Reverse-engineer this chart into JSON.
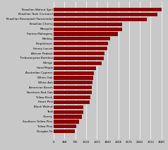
{
  "species": [
    "Brazilian Walnut (Ipe)",
    "Brazilian Teak (Cumaru)",
    "Brazilian Rosewood (Tamarindo)",
    "Brazilian Cherry",
    "Mesquite",
    "Santos Mahogany",
    "Merbau",
    "Purpleheart",
    "Honey Locust",
    "African Padauk",
    "Timboranyana Bamboo",
    "Wenge",
    "Hard Maple",
    "Australian Cypress",
    "White Oak",
    "White Ash",
    "American Beech",
    "Northern Red Oak",
    "Yellow Birch",
    "Heart Pine",
    "Black Walnut",
    "Teak",
    "Cherry",
    "Southern Yellow Pine",
    "Yellow Pine",
    "Douglas Fir"
  ],
  "values": [
    3684,
    3540,
    3190,
    2350,
    2345,
    2200,
    1925,
    1860,
    1820,
    1725,
    1700,
    1630,
    1450,
    1375,
    1360,
    1320,
    1300,
    1290,
    1260,
    1225,
    1010,
    1000,
    950,
    870,
    780,
    710
  ],
  "bar_color": "#8B0000",
  "bg_color": "#C8C8C8",
  "plot_bg_color": "#C8C8C8",
  "xticks": [
    0,
    368,
    736,
    1104,
    1472,
    1840,
    2208,
    2576,
    2944,
    3312,
    3680
  ],
  "xtick_labels": [
    "0",
    "368",
    "736",
    "1104",
    "1472",
    "1840",
    "2208",
    "2576",
    "2944",
    "3312",
    "3680"
  ],
  "label_fontsize": 3.0,
  "tick_fontsize": 2.8,
  "xlim_max": 3850
}
